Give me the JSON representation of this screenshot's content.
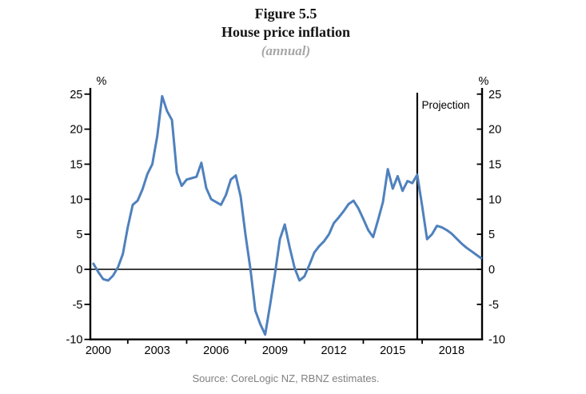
{
  "figure": {
    "number": "Figure 5.5",
    "title": "House price inflation",
    "subtitle": "(annual)",
    "source": "Source: CoreLogic NZ, RBNZ estimates."
  },
  "chart_data": {
    "type": "line",
    "title": "Figure 5.5 House price inflation (annual)",
    "ylabel_left": "%",
    "ylabel_right": "%",
    "ylim": [
      -10,
      25
    ],
    "yticks": [
      25,
      20,
      15,
      10,
      5,
      0,
      -5,
      -10
    ],
    "xlim": [
      1999.5,
      2019.6
    ],
    "xtick_years": [
      2000,
      2003,
      2006,
      2009,
      2012,
      2015,
      2018
    ],
    "xtick_labels": [
      "2000",
      "2003",
      "2006",
      "2009",
      "2012",
      "2015",
      "2018"
    ],
    "xtick_minor_years": [
      2001.5,
      2004.5,
      2007.5,
      2010.5,
      2013.5,
      2016.5
    ],
    "zero_line": true,
    "grid": false,
    "legend": "none",
    "projection_start": 2016.25,
    "projection_label": "Projection",
    "source": "Source: CoreLogic NZ, RBNZ estimates.",
    "colors": {
      "line": "#4F81BD",
      "axis": "#000000",
      "subtitle_gray": "#A6A6A6",
      "source_gray": "#808080"
    },
    "series": [
      {
        "name": "House price inflation",
        "color": "#4F81BD",
        "points": [
          [
            1999.75,
            0.8
          ],
          [
            2000.0,
            -0.4
          ],
          [
            2000.25,
            -1.4
          ],
          [
            2000.5,
            -1.6
          ],
          [
            2000.75,
            -0.9
          ],
          [
            2001.0,
            0.3
          ],
          [
            2001.25,
            2.2
          ],
          [
            2001.5,
            6.0
          ],
          [
            2001.75,
            9.2
          ],
          [
            2002.0,
            9.8
          ],
          [
            2002.25,
            11.4
          ],
          [
            2002.5,
            13.6
          ],
          [
            2002.75,
            15.0
          ],
          [
            2003.0,
            19.0
          ],
          [
            2003.25,
            24.7
          ],
          [
            2003.5,
            22.6
          ],
          [
            2003.75,
            21.3
          ],
          [
            2004.0,
            13.8
          ],
          [
            2004.25,
            11.9
          ],
          [
            2004.5,
            12.8
          ],
          [
            2004.75,
            13.0
          ],
          [
            2005.0,
            13.2
          ],
          [
            2005.25,
            15.2
          ],
          [
            2005.5,
            11.6
          ],
          [
            2005.75,
            10.0
          ],
          [
            2006.0,
            9.6
          ],
          [
            2006.25,
            9.2
          ],
          [
            2006.5,
            10.6
          ],
          [
            2006.75,
            12.8
          ],
          [
            2007.0,
            13.4
          ],
          [
            2007.25,
            10.4
          ],
          [
            2007.5,
            4.9
          ],
          [
            2007.75,
            0.0
          ],
          [
            2008.0,
            -5.9
          ],
          [
            2008.25,
            -7.8
          ],
          [
            2008.5,
            -9.3
          ],
          [
            2008.75,
            -5.1
          ],
          [
            2009.0,
            -0.6
          ],
          [
            2009.25,
            4.3
          ],
          [
            2009.5,
            6.4
          ],
          [
            2009.75,
            3.1
          ],
          [
            2010.0,
            0.2
          ],
          [
            2010.25,
            -1.6
          ],
          [
            2010.5,
            -1.0
          ],
          [
            2010.75,
            0.6
          ],
          [
            2011.0,
            2.4
          ],
          [
            2011.25,
            3.3
          ],
          [
            2011.5,
            4.0
          ],
          [
            2011.75,
            5.0
          ],
          [
            2012.0,
            6.6
          ],
          [
            2012.25,
            7.4
          ],
          [
            2012.5,
            8.3
          ],
          [
            2012.75,
            9.3
          ],
          [
            2013.0,
            9.8
          ],
          [
            2013.25,
            8.7
          ],
          [
            2013.5,
            7.2
          ],
          [
            2013.75,
            5.6
          ],
          [
            2014.0,
            4.6
          ],
          [
            2014.25,
            7.0
          ],
          [
            2014.5,
            9.6
          ],
          [
            2014.75,
            14.3
          ],
          [
            2015.0,
            11.5
          ],
          [
            2015.25,
            13.3
          ],
          [
            2015.5,
            11.2
          ],
          [
            2015.75,
            12.6
          ],
          [
            2016.0,
            12.3
          ],
          [
            2016.25,
            13.5
          ],
          [
            2016.5,
            9.0
          ],
          [
            2016.75,
            4.3
          ],
          [
            2017.0,
            5.0
          ],
          [
            2017.25,
            6.2
          ],
          [
            2017.5,
            6.0
          ],
          [
            2017.75,
            5.6
          ],
          [
            2018.0,
            5.1
          ],
          [
            2018.25,
            4.4
          ],
          [
            2018.5,
            3.7
          ],
          [
            2018.75,
            3.1
          ],
          [
            2019.0,
            2.6
          ],
          [
            2019.25,
            2.1
          ],
          [
            2019.5,
            1.6
          ]
        ]
      }
    ]
  }
}
